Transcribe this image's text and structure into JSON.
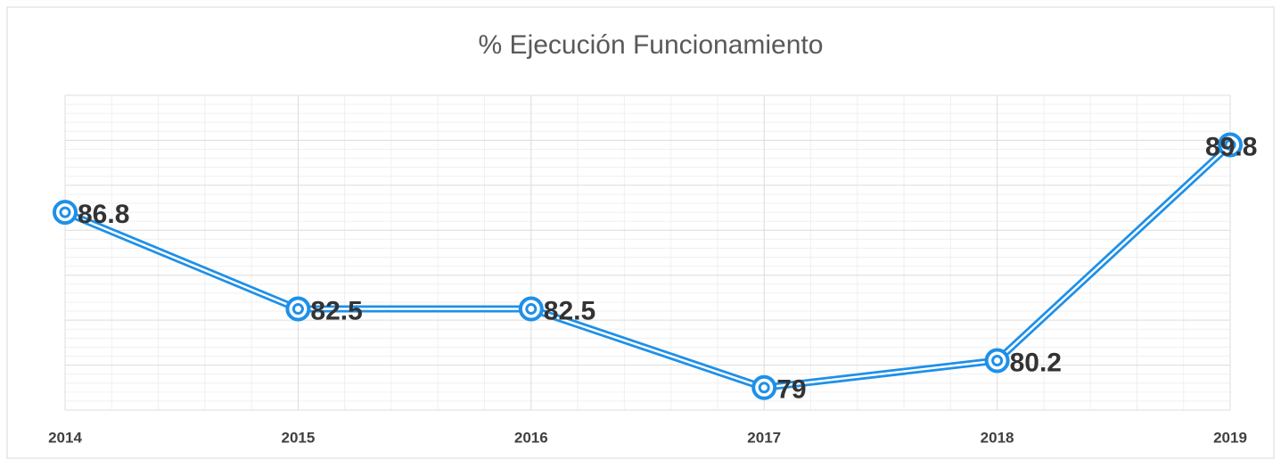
{
  "chart_data": {
    "type": "line",
    "title": "% Ejecución Funcionamiento",
    "categories": [
      "2014",
      "2015",
      "2016",
      "2017",
      "2018",
      "2019"
    ],
    "series": [
      {
        "name": "% Ejecución Funcionamiento",
        "color": "#1e90e8",
        "values": [
          86.8,
          82.5,
          82.5,
          79,
          80.2,
          89.8
        ]
      }
    ],
    "ylim": [
      78,
      92
    ],
    "yticks": [
      78,
      80,
      82,
      84,
      86,
      88,
      90,
      92
    ],
    "grid": true
  }
}
